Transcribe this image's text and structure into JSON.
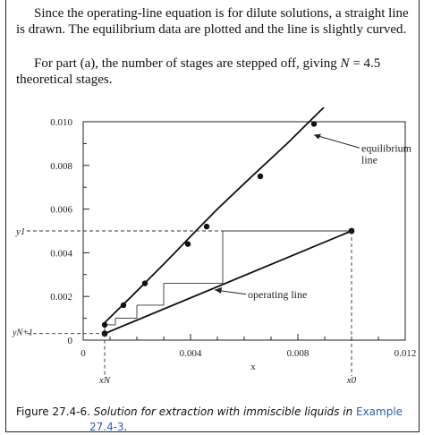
{
  "text": {
    "p1": "Since the operating-line equation is for dilute solutions, a straight line is drawn. The equilibrium data are plotted and the line is slightly curved.",
    "p2_pre": "For part (a), the number of stages are stepped off, giving ",
    "p2_var": "N",
    "p2_eq": " = 4.5",
    "p2_post": " theoretical stages."
  },
  "caption": {
    "label": "Figure 27.4-6.",
    "text": "Solution for extraction with immiscible liquids in",
    "link_line1": "Example",
    "link_line2": "27.4-3",
    "end": "."
  },
  "chart_data": {
    "type": "line",
    "xlabel": "x",
    "ylabel": "",
    "xlim": [
      0,
      0.012
    ],
    "ylim": [
      0,
      0.01
    ],
    "x_ticks": [
      0,
      0.004,
      0.008,
      0.012
    ],
    "x_tick_labels": [
      "0",
      "0.004",
      "0.008",
      "0.012"
    ],
    "y_ticks": [
      0,
      0.002,
      0.004,
      0.006,
      0.008,
      0.01
    ],
    "y_tick_labels": [
      "0",
      "0.002",
      "0.004",
      "0.006",
      "0.008",
      "0.010"
    ],
    "annotations": {
      "equilibrium": "equilibrium line",
      "operating": "operating line",
      "y1": "y1",
      "yN1": "yN+1",
      "xN": "xN",
      "x0": "x0"
    },
    "series": [
      {
        "name": "equilibrium line",
        "x": [
          0.0008,
          0.0018,
          0.0031,
          0.0042,
          0.005,
          0.0062,
          0.0076,
          0.009
        ],
        "y": [
          0.0008,
          0.002,
          0.0036,
          0.005,
          0.006,
          0.0074,
          0.009,
          0.0107
        ]
      },
      {
        "name": "operating line",
        "x": [
          0.0008,
          0.01
        ],
        "y": [
          0.0003,
          0.005
        ]
      }
    ],
    "equilibrium_points": [
      [
        0.0008,
        0.0007
      ],
      [
        0.0015,
        0.0016
      ],
      [
        0.0023,
        0.0026
      ],
      [
        0.0039,
        0.0044
      ],
      [
        0.0046,
        0.0052
      ],
      [
        0.0066,
        0.0075
      ],
      [
        0.0086,
        0.0099
      ]
    ],
    "operating_points": [
      [
        0.0008,
        0.0003
      ],
      [
        0.01,
        0.005
      ]
    ],
    "stairs": [
      [
        0.01,
        0.005
      ],
      [
        0.0052,
        0.005
      ],
      [
        0.0052,
        0.0026
      ],
      [
        0.003,
        0.0026
      ],
      [
        0.003,
        0.0016
      ],
      [
        0.002,
        0.0016
      ],
      [
        0.002,
        0.001
      ],
      [
        0.0012,
        0.001
      ],
      [
        0.0012,
        0.0007
      ],
      [
        0.0008,
        0.0007
      ],
      [
        0.0008,
        0.0003
      ]
    ],
    "y1": 0.005,
    "yN1": 0.0003,
    "xN": 0.0008,
    "x0": 0.01
  }
}
